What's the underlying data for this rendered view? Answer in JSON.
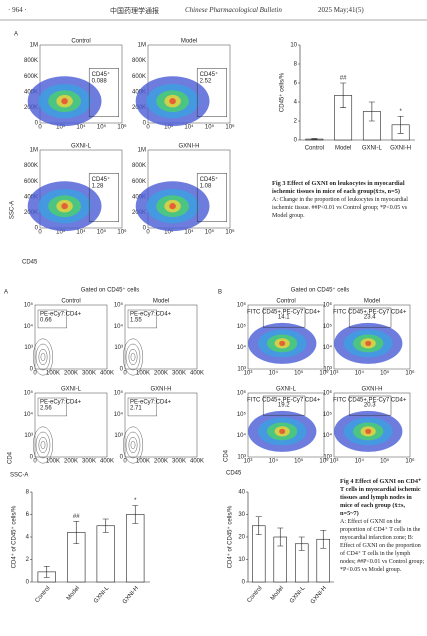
{
  "header": {
    "page": "· 964 ·",
    "journal_cn": "中国药理学通报",
    "journal_en": "Chinese Pharmacological Bulletin",
    "issue": "2025 May;41(5)"
  },
  "fig3": {
    "panel": "A",
    "y_label": "SSC-A",
    "x_label": "CD45",
    "xticks": [
      "0",
      "10³",
      "10⁴",
      "10⁵",
      "10⁶"
    ],
    "yticks": [
      "0",
      "200K",
      "400K",
      "600K",
      "800K",
      "1M"
    ],
    "plots": [
      {
        "title": "Control",
        "gate": "CD45⁺",
        "value": "0.088"
      },
      {
        "title": "Model",
        "gate": "CD45⁺",
        "value": "2.52"
      },
      {
        "title": "GXNI-L",
        "gate": "CD45⁺",
        "value": "1.28"
      },
      {
        "title": "GXNI-H",
        "gate": "CD45⁺",
        "value": "1.08"
      }
    ],
    "caption_title": "Fig 3  Effect of GXNI on leukocytes in myocardial ischemic tissues in mice of each group(x̄±s, n=5)",
    "caption_body": "A: Change in the proportion of leukocytes in myocardial ischemic tissue. ##P<0.01 vs Control group; *P<0.05 vs Model group."
  },
  "fig4": {
    "panel_a": "A",
    "panel_b": "B",
    "gated_a": "Gated on CD45⁺ cells",
    "gated_b": "Gated on CD45⁺ cells",
    "a_y_label": "CD4",
    "a_x_label": "SSC-A",
    "a_xticks": [
      "0",
      "100K",
      "200K",
      "300K",
      "400K"
    ],
    "a_yticks": [
      "0",
      "10³",
      "10⁴",
      "10⁵"
    ],
    "a_plots": [
      {
        "title": "Control",
        "gate": "PE-eCy7:CD4+",
        "value": "0.66"
      },
      {
        "title": "Model",
        "gate": "PE-eCy7:CD4+",
        "value": "1.55"
      },
      {
        "title": "GXNI-L",
        "gate": "PE-eCy7:CD4+",
        "value": "2.56"
      },
      {
        "title": "GXNI-H",
        "gate": "PE-eCy7:CD4+",
        "value": "2.71"
      }
    ],
    "b_y_label": "CD4",
    "b_x_label": "CD45",
    "b_xticks": [
      "10³",
      "10⁴",
      "10⁵",
      "10⁶"
    ],
    "b_yticks": [
      "10³",
      "10⁴",
      "10⁵",
      "10⁶"
    ],
    "b_plots": [
      {
        "title": "Control",
        "gate": "FITC CD45+,PE-Cy7 CD4+",
        "value": "14.1"
      },
      {
        "title": "Model",
        "gate": "FITC CD45+,PE-Cy7 CD4+",
        "value": "23.4"
      },
      {
        "title": "GXNI-L",
        "gate": "FITC CD45+,PE-Cy7 CD4+",
        "value": "19.2"
      },
      {
        "title": "GXNI-H",
        "gate": "FITC CD45+,PE-Cy7 CD4+",
        "value": "20.3"
      }
    ],
    "caption_title": "Fig 4  Effect of GXNI on CD4⁺ T cells in myocardial ischemic tissues and lymph nodes in mice of each group (x̄±s, n=5~7)",
    "caption_body": "A: Effect of GXNI on the proportion of CD4⁺ T cells in the myocardial infarction zone; B: Effect of GXNI on the proportion of CD4⁺ T cells in the lymph nodes; ##P<0.01 vs Control group; *P<0.05 vs Model group."
  },
  "chart_data": [
    {
      "type": "bar",
      "y_label": "CD45⁺ cells/%",
      "categories": [
        "Control",
        "Model",
        "GXNI-L",
        "GXNI-H"
      ],
      "values": [
        0.1,
        4.7,
        3.0,
        1.6
      ],
      "errors": [
        0.05,
        1.3,
        1.0,
        0.9
      ],
      "annotations": [
        null,
        "##",
        null,
        "*"
      ],
      "ylim": [
        0,
        10
      ],
      "yticks": [
        0,
        2,
        4,
        6,
        8,
        10
      ],
      "color": "#ffffff"
    },
    {
      "type": "bar",
      "y_label": "CD4⁺ of CD45⁺ cells/%",
      "categories": [
        "Control",
        "Model",
        "GXNI-L",
        "GXNI-H"
      ],
      "values": [
        0.9,
        4.4,
        5.0,
        6.0
      ],
      "errors": [
        0.5,
        1.0,
        0.6,
        0.8
      ],
      "annotations": [
        null,
        "##",
        null,
        "*"
      ],
      "ylim": [
        0,
        8
      ],
      "yticks": [
        0,
        2,
        4,
        6,
        8
      ],
      "color": "#ffffff"
    },
    {
      "type": "bar",
      "y_label": "CD4⁺ of CD45⁺ cells/%",
      "categories": [
        "Control",
        "Model",
        "GXNI-L",
        "GXNI-H"
      ],
      "values": [
        25,
        20,
        17,
        19
      ],
      "errors": [
        4,
        4,
        3,
        4
      ],
      "annotations": [
        null,
        null,
        null,
        null
      ],
      "ylim": [
        0,
        40
      ],
      "yticks": [
        0,
        10,
        20,
        30,
        40
      ],
      "color": "#ffffff"
    }
  ]
}
